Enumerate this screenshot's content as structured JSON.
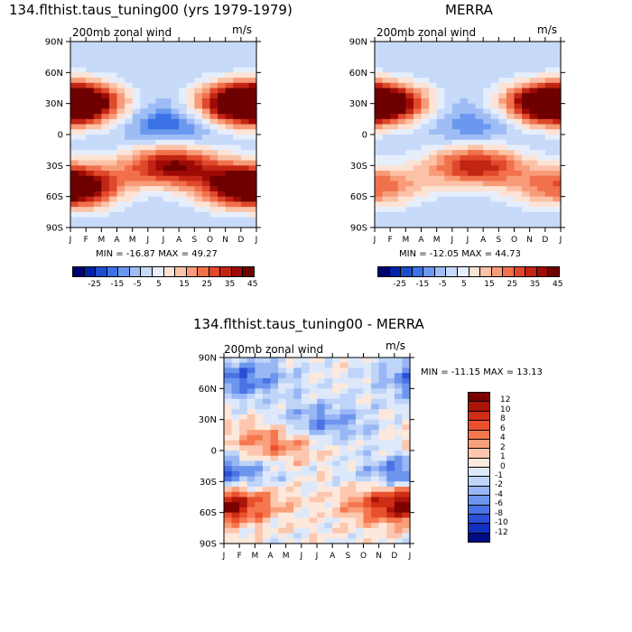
{
  "panels": [
    {
      "title": "134.flthist.taus_tuning00 (yrs 1979-1979)",
      "variable": "200mb zonal wind",
      "units": "m/s",
      "stats": "MIN = -16.87 MAX =  49.27"
    },
    {
      "title": "MERRA",
      "variable": "200mb zonal wind",
      "units": "m/s",
      "stats": "MIN = -12.05 MAX =  44.73"
    },
    {
      "title": "134.flthist.taus_tuning00 - MERRA",
      "variable": "200mb zonal wind",
      "units": "m/s",
      "stats": "MIN = -11.15 MAX =  13.13"
    }
  ],
  "chart_data": [
    {
      "type": "heatmap",
      "title": "134.flthist.taus_tuning00 (yrs 1979-1979)",
      "subtitle": "200mb zonal wind",
      "units": "m/s",
      "x_ticks": [
        "J",
        "F",
        "M",
        "A",
        "M",
        "J",
        "J",
        "A",
        "S",
        "O",
        "N",
        "D",
        "J"
      ],
      "y_ticks": [
        "90N",
        "60N",
        "30N",
        "0",
        "30S",
        "60S",
        "90S"
      ],
      "min": -16.87,
      "max": 49.27,
      "colorbar_labels": [
        "-25",
        "-15",
        "-5",
        "5",
        "15",
        "25",
        "35",
        "45"
      ],
      "features": [
        {
          "month": 1,
          "lat": 30,
          "value": 45
        },
        {
          "month": 12.5,
          "lat": 30,
          "value": 45
        },
        {
          "month": 7.5,
          "lat": 10,
          "value": -15
        },
        {
          "month": 7.5,
          "lat": -30,
          "value": 45
        },
        {
          "month": 1,
          "lat": -50,
          "value": 35
        },
        {
          "month": 12.5,
          "lat": -50,
          "value": 35
        }
      ]
    },
    {
      "type": "heatmap",
      "title": "MERRA",
      "subtitle": "200mb zonal wind",
      "units": "m/s",
      "x_ticks": [
        "J",
        "F",
        "M",
        "A",
        "M",
        "J",
        "J",
        "A",
        "S",
        "O",
        "N",
        "D",
        "J"
      ],
      "y_ticks": [
        "90N",
        "60N",
        "30N",
        "0",
        "30S",
        "60S",
        "90S"
      ],
      "min": -12.05,
      "max": 44.73,
      "colorbar_labels": [
        "-25",
        "-15",
        "-5",
        "5",
        "15",
        "25",
        "35",
        "45"
      ],
      "features": [
        {
          "month": 1,
          "lat": 30,
          "value": 40
        },
        {
          "month": 12.5,
          "lat": 30,
          "value": 40
        },
        {
          "month": 7.5,
          "lat": 10,
          "value": -10
        },
        {
          "month": 7.5,
          "lat": -30,
          "value": 40
        },
        {
          "month": 1,
          "lat": -50,
          "value": 30
        }
      ]
    },
    {
      "type": "heatmap",
      "title": "134.flthist.taus_tuning00 - MERRA",
      "subtitle": "200mb zonal wind",
      "units": "m/s",
      "x_ticks": [
        "J",
        "F",
        "M",
        "A",
        "M",
        "J",
        "J",
        "A",
        "S",
        "O",
        "N",
        "D",
        "J"
      ],
      "y_ticks": [
        "90N",
        "60N",
        "30N",
        "0",
        "30S",
        "60S",
        "90S"
      ],
      "min": -11.15,
      "max": 13.13,
      "colorbar_labels": [
        "12",
        "10",
        "8",
        "6",
        "4",
        "2",
        "1",
        "0",
        "-1",
        "-2",
        "-4",
        "-6",
        "-8",
        "-10",
        "-12"
      ],
      "features": [
        {
          "month": 4.5,
          "lat": 10,
          "value": 8
        },
        {
          "month": 7,
          "lat": 25,
          "value": -8
        },
        {
          "month": 1,
          "lat": -25,
          "value": -10
        },
        {
          "month": 12,
          "lat": -50,
          "value": 8
        },
        {
          "month": 1.5,
          "lat": -50,
          "value": 8
        },
        {
          "month": 2,
          "lat": 70,
          "value": -8
        }
      ]
    }
  ],
  "palettes": {
    "main": [
      "#00006e",
      "#0021a8",
      "#1c4ecc",
      "#3b72e6",
      "#6b98ef",
      "#9fbdf5",
      "#c8daf9",
      "#e6eefc",
      "#fde3d5",
      "#fbc2a8",
      "#f89b78",
      "#f0714c",
      "#e0482b",
      "#c22513",
      "#9e0b06",
      "#6e0000"
    ],
    "diff": [
      "#7d0000",
      "#aa1508",
      "#cf2d16",
      "#e9512e",
      "#f6774e",
      "#f99f7c",
      "#fcc7ae",
      "#fde8dc",
      "#dde9fb",
      "#bed4f8",
      "#98b7f4",
      "#6d95ed",
      "#4a72e5",
      "#2a4fd7",
      "#1230bf",
      "#000c86"
    ]
  }
}
